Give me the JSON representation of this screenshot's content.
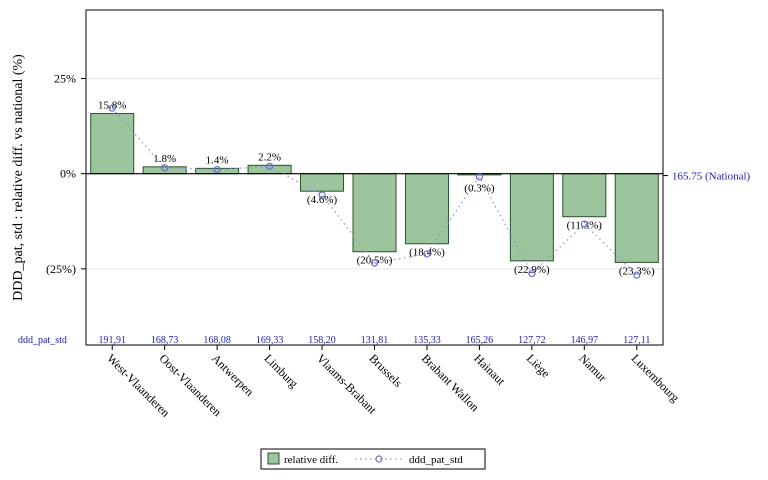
{
  "chart_data": {
    "type": "bar",
    "ylabel": "DDD_pat, std : relative diff. vs national (%)",
    "categories": [
      "West-Vlaanderen",
      "Oost-Vlaanderen",
      "Antwerpen",
      "Limburg",
      "Vlaams-Brabant",
      "Brussels",
      "Brabant Wallon",
      "Hainaut",
      "Liège",
      "Namur",
      "Luxembourg"
    ],
    "bar_values": [
      15.8,
      1.8,
      1.4,
      2.2,
      -4.6,
      -20.5,
      -18.4,
      -0.3,
      -22.9,
      -11.3,
      -23.3
    ],
    "bar_labels": [
      "15.8%",
      "1.8%",
      "1.4%",
      "2.2%",
      "(4.6%)",
      "(20.5%)",
      "(18.4%)",
      "(0.3%)",
      "(22.9%)",
      "(11.3%)",
      "(23.3%)"
    ],
    "line_values": [
      191.91,
      168.73,
      168.08,
      169.33,
      158.2,
      131.81,
      135.33,
      165.26,
      127.72,
      146.97,
      127.11
    ],
    "line_labels": [
      "191,91",
      "168,73",
      "168,08",
      "169,33",
      "158,20",
      "131,81",
      "135,33",
      "165,26",
      "127,72",
      "146,97",
      "127,11"
    ],
    "ytick_values": [
      25,
      0,
      -25
    ],
    "ytick_labels": [
      "25%",
      "0%",
      "(25%)"
    ],
    "ylim": [
      -45,
      43
    ],
    "line_ylim": [
      100,
      230
    ],
    "national_label": "165.75 (National)",
    "national_value": 165.75,
    "row_label": "ddd_pat_std",
    "legend": {
      "position": "bottom",
      "bar_entry": "relative diff.",
      "line_entry": "ddd_pat_std"
    },
    "colors": {
      "bar_fill": "#9dc59d",
      "bar_stroke": "#2f4f2f",
      "line": "#8f8fd8",
      "marker": "#6a6ad8",
      "value_text": "#2020b0",
      "zero_line": "#000000",
      "grid": "#e6e6e6"
    }
  }
}
